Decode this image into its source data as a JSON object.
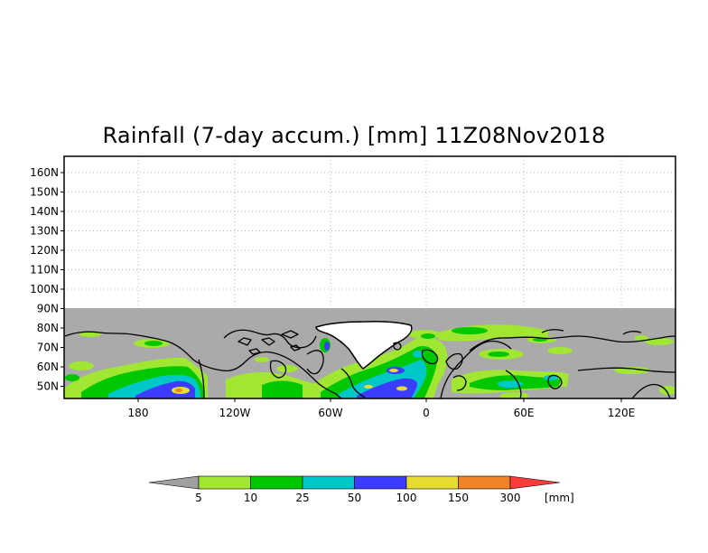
{
  "map": {
    "title": "Rainfall (7-day accum.) [mm] 11Z08Nov2018",
    "lat_labels": [
      "160N",
      "150N",
      "140N",
      "130N",
      "120N",
      "110N",
      "100N",
      "90N",
      "80N",
      "70N",
      "60N",
      "50N"
    ],
    "lon_labels": [
      "180",
      "120W",
      "60W",
      "0",
      "60E",
      "120E"
    ]
  },
  "legend": {
    "unit": "[mm]",
    "labels": [
      "5",
      "10",
      "25",
      "50",
      "100",
      "150",
      "300"
    ],
    "colors": [
      "#a0a0a0",
      "#a0e632",
      "#00c800",
      "#00c8c8",
      "#3c3cff",
      "#e6dc32",
      "#f08228",
      "#fa3c3c"
    ]
  },
  "colors": {
    "no_data": "#aaaaaa",
    "background": "#ffffff",
    "coastline": "#000000"
  }
}
